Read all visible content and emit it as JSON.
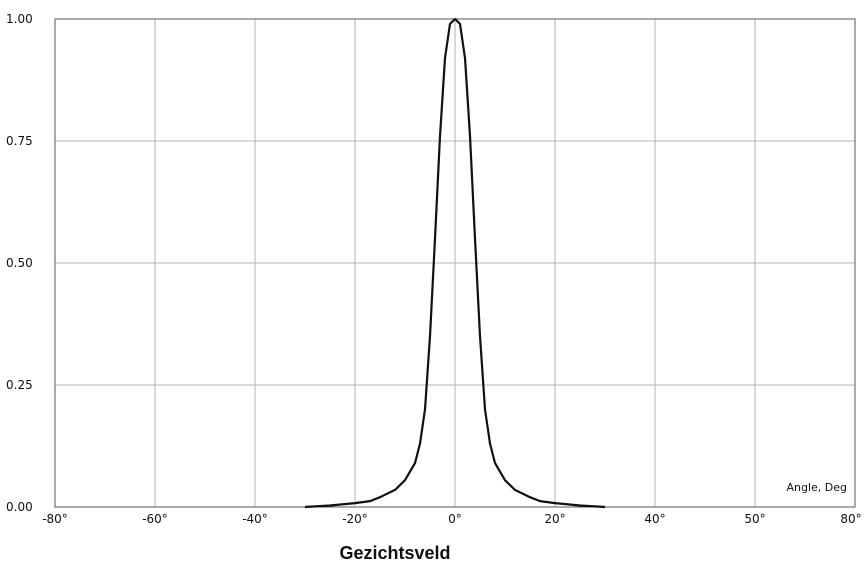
{
  "chart_data": {
    "type": "line",
    "title": "",
    "caption": "Gezichtsveld",
    "xlabel": "Angle, Deg",
    "ylabel": "",
    "xlim": [
      -80,
      80
    ],
    "ylim": [
      0,
      1
    ],
    "grid": true,
    "x_ticks": [
      -80,
      -60,
      -40,
      -20,
      0,
      20,
      40,
      50,
      80
    ],
    "x_tick_labels": [
      "-80°",
      "-60°",
      "-40°",
      "-20°",
      "0°",
      "20°",
      "40°",
      "50°",
      "80°"
    ],
    "y_ticks": [
      0,
      0.25,
      0.5,
      0.75,
      1.0
    ],
    "y_tick_labels": [
      "0.00",
      "0.25",
      "0.50",
      "0.75",
      "1.00"
    ],
    "line_color": "#111111",
    "series": [
      {
        "x": [
          -30,
          -25,
          -20,
          -17,
          -15,
          -12,
          -10,
          -8,
          -7,
          -6,
          -5,
          -4,
          -3,
          -2,
          -1,
          0,
          1,
          2,
          3,
          4,
          5,
          6,
          7,
          8,
          10,
          12,
          15,
          17,
          20,
          25,
          30
        ],
        "values": [
          0.0,
          0.003,
          0.008,
          0.012,
          0.02,
          0.035,
          0.055,
          0.09,
          0.13,
          0.2,
          0.35,
          0.55,
          0.76,
          0.92,
          0.99,
          1.0,
          0.99,
          0.92,
          0.76,
          0.55,
          0.35,
          0.2,
          0.13,
          0.09,
          0.055,
          0.035,
          0.02,
          0.012,
          0.008,
          0.003,
          0.0
        ]
      }
    ]
  }
}
